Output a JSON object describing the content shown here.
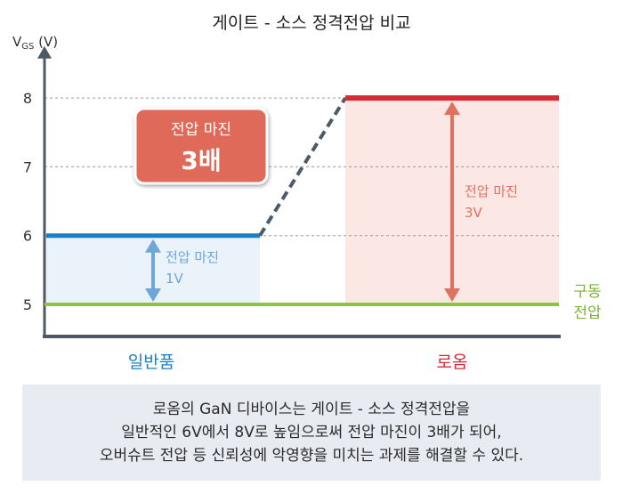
{
  "title": "게이트 - 소스 정격전압 비교",
  "chart_data": {
    "type": "line",
    "title": "게이트 - 소스 정격전압 비교",
    "ylabel": "V",
    "ylabel_sub": "GS",
    "ylabel_unit": "(V)",
    "ylim": [
      4.5,
      8.6
    ],
    "yticks": [
      5,
      6,
      7,
      8
    ],
    "grid": true,
    "categories": [
      "일반품",
      "로옴"
    ],
    "series": [
      {
        "name": "일반품",
        "value": 6,
        "color": "#1a80c4"
      },
      {
        "name": "로옴",
        "value": 8,
        "color": "#d62a35"
      },
      {
        "name": "구동 전압",
        "value": 5,
        "color": "#8cc63f"
      }
    ],
    "margins": [
      {
        "label": "전압 마진",
        "value": "1V",
        "from": 5,
        "to": 6,
        "color": "#6fa6d8"
      },
      {
        "label": "전압 마진",
        "value": "3V",
        "from": 5,
        "to": 8,
        "color": "#e07060"
      }
    ],
    "drive_label": [
      "구동",
      "전압"
    ],
    "badge": {
      "line1": "전압 마진",
      "line2": "3배"
    }
  },
  "caption": [
    "로옴의 GaN 디바이스는 게이트 - 소스 정격전압을",
    "일반적인 6V에서 8V로 높임으로써 전압 마진이 3배가 되어,",
    "오버슈트 전압 등 신뢰성에 악영향을 미치는 과제를 해결할 수 있다."
  ],
  "colors": {
    "axis": "#4d5a66",
    "grid": "#9a9a9a",
    "shade_left": "#eaf2fa",
    "shade_right": "#fbe7e3",
    "badge_fill": "#e06b5a",
    "text_blue": "#1a80c4",
    "text_red": "#d62a35",
    "text_green": "#7bb431"
  }
}
